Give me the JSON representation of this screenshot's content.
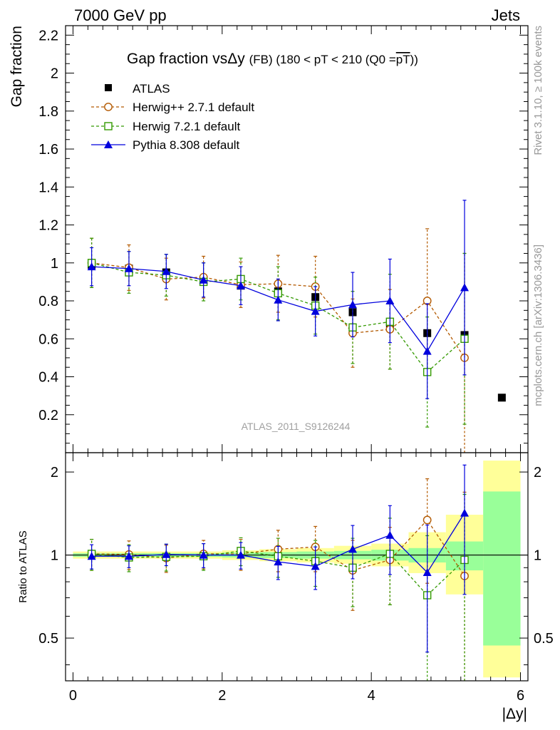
{
  "header": {
    "left": "7000 GeV pp",
    "right": "Jets"
  },
  "side_labels": {
    "rivet": "Rivet 3.1.10, ≥ 100k events",
    "mcplots": "mcplots.cern.ch [arXiv:1306.3436]"
  },
  "analysis_label": "ATLAS_2011_S9126244",
  "colors": {
    "data": "#000000",
    "herwigpp": "#b35900",
    "herwig7": "#339900",
    "pythia": "#0000dd",
    "band_inner": "#99ff99",
    "band_outer": "#ffff99"
  },
  "chart_data": [
    {
      "type": "scatter",
      "title": "Gap fraction vs Δy (FB) (180 < pT < 210 (Q0 = pT))",
      "title_parts": {
        "main": "Gap fraction vs",
        "delta": "Δy",
        "tail": "(FB) (180 < pT < 210 (Q0 =",
        "overline": "pT",
        "close": "))"
      },
      "xlabel": "|Δy|",
      "ylabel": "Gap fraction",
      "xlim": [
        -0.1,
        6.1
      ],
      "ylim": [
        0,
        2.25
      ],
      "x_ticks": [
        0,
        2,
        4,
        6
      ],
      "y_ticks": [
        0.2,
        0.4,
        0.6,
        0.8,
        1,
        1.2,
        1.4,
        1.6,
        1.8,
        2,
        2.2
      ],
      "y_tick_labels": [
        "0.2",
        "0.4",
        "0.6",
        "0.8",
        "1",
        "1.2",
        "1.4",
        "1.6",
        "1.8",
        "2",
        "2.2"
      ],
      "grid": false,
      "legend_position": "top-left",
      "x": [
        0.25,
        0.75,
        1.25,
        1.75,
        2.25,
        2.75,
        3.25,
        3.75,
        4.25,
        4.75,
        5.25,
        5.75
      ],
      "series": [
        {
          "name": "ATLAS",
          "key": "data",
          "values": [
            0.99,
            0.97,
            0.95,
            0.91,
            0.88,
            0.85,
            0.82,
            0.74,
            0.68,
            0.63,
            0.62,
            0.29
          ]
        },
        {
          "name": "Herwig++ 2.7.1 default",
          "key": "herwigpp",
          "values": [
            1.0,
            0.975,
            0.915,
            0.925,
            0.885,
            0.89,
            0.875,
            0.63,
            0.65,
            0.8,
            0.5
          ],
          "err": [
            0.13,
            0.12,
            0.11,
            0.11,
            0.12,
            0.15,
            0.16,
            0.18,
            0.21,
            0.38,
            0.55
          ]
        },
        {
          "name": "Herwig 7.2.1 default",
          "key": "herwig7",
          "values": [
            1.0,
            0.95,
            0.935,
            0.9,
            0.915,
            0.84,
            0.775,
            0.66,
            0.69,
            0.425,
            0.6
          ],
          "err": [
            0.13,
            0.11,
            0.11,
            0.1,
            0.11,
            0.14,
            0.15,
            0.19,
            0.25,
            0.29,
            0.45
          ]
        },
        {
          "name": "Pythia 8.308 default",
          "key": "pythia",
          "values": [
            0.98,
            0.97,
            0.955,
            0.91,
            0.88,
            0.805,
            0.745,
            0.78,
            0.8,
            0.535,
            0.87
          ],
          "err": [
            0.1,
            0.09,
            0.09,
            0.09,
            0.1,
            0.11,
            0.13,
            0.17,
            0.22,
            0.25,
            0.46
          ]
        }
      ]
    },
    {
      "type": "scatter",
      "title": "",
      "xlabel": "|Δy|",
      "ylabel": "Ratio to ATLAS",
      "xlim": [
        -0.1,
        6.1
      ],
      "ylim": [
        0.35,
        2.35
      ],
      "log_scale_y": true,
      "x_ticks": [
        0,
        2,
        4,
        6
      ],
      "y_ticks": [
        0.5,
        1,
        2
      ],
      "y_tick_labels": [
        "0.5",
        "1",
        "2"
      ],
      "grid": false,
      "reference_line": 1,
      "x": [
        0.25,
        0.75,
        1.25,
        1.75,
        2.25,
        2.75,
        3.25,
        3.75,
        4.25,
        4.75,
        5.25,
        5.75
      ],
      "band": {
        "bin_edges": [
          0,
          0.5,
          1.0,
          1.5,
          2.0,
          2.5,
          3.0,
          3.5,
          4.0,
          4.5,
          5.0,
          5.5,
          6.0
        ],
        "inner_low": [
          0.985,
          0.985,
          0.985,
          0.985,
          0.98,
          0.975,
          0.97,
          0.965,
          0.955,
          0.94,
          0.88,
          0.47
        ],
        "inner_high": [
          1.015,
          1.015,
          1.015,
          1.015,
          1.02,
          1.025,
          1.03,
          1.035,
          1.045,
          1.06,
          1.12,
          1.7
        ],
        "outer_low": [
          0.97,
          0.97,
          0.97,
          0.97,
          0.96,
          0.95,
          0.94,
          0.93,
          0.91,
          0.86,
          0.72,
          0.36
        ],
        "outer_high": [
          1.03,
          1.03,
          1.03,
          1.03,
          1.04,
          1.05,
          1.06,
          1.08,
          1.1,
          1.21,
          1.4,
          2.2
        ]
      },
      "series": [
        {
          "name": "Herwig++ 2.7.1 default",
          "key": "herwigpp",
          "values": [
            1.01,
            1.005,
            0.975,
            1.01,
            1.01,
            1.05,
            1.07,
            0.88,
            0.96,
            1.34,
            0.84
          ],
          "err": [
            0.13,
            0.12,
            0.11,
            0.12,
            0.13,
            0.18,
            0.2,
            0.25,
            0.3,
            0.55,
            0.85
          ]
        },
        {
          "name": "Herwig 7.2.1 default",
          "key": "herwig7",
          "values": [
            1.01,
            0.98,
            0.985,
            0.99,
            1.035,
            0.99,
            0.95,
            0.9,
            1.01,
            0.715,
            0.96
          ],
          "err": [
            0.13,
            0.11,
            0.11,
            0.11,
            0.12,
            0.16,
            0.18,
            0.25,
            0.35,
            0.46,
            0.7
          ]
        },
        {
          "name": "Pythia 8.308 default",
          "key": "pythia",
          "values": [
            0.99,
            0.99,
            1.005,
            1.0,
            1.0,
            0.945,
            0.91,
            1.05,
            1.18,
            0.865,
            1.42
          ],
          "err": [
            0.1,
            0.09,
            0.09,
            0.1,
            0.11,
            0.13,
            0.16,
            0.23,
            0.33,
            0.42,
            0.7
          ]
        }
      ]
    }
  ]
}
